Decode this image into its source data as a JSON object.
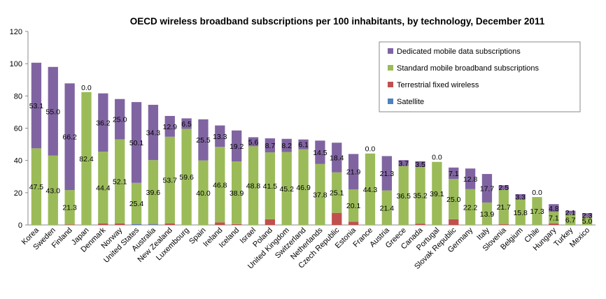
{
  "chart_data": {
    "type": "bar",
    "stacked": true,
    "title": "OECD wireless broadband subscriptions per 100 inhabitants, by technology, December 2011",
    "ylim": [
      0,
      120
    ],
    "yticks": [
      "0",
      "20",
      "40",
      "60",
      "80",
      "100",
      "120"
    ],
    "grid": false,
    "legend_position": "top-right",
    "categories": [
      "Korea",
      "Sweden",
      "Finland",
      "Japan",
      "Denmark",
      "Norway",
      "United States",
      "Australia",
      "New Zealand",
      "Luxembourg",
      "Spain",
      "Ireland",
      "Iceland",
      "Israel",
      "Poland",
      "United Kingdom",
      "Switzerland",
      "Netherlands",
      "Czech Republic",
      "Estonia",
      "France",
      "Austria",
      "Greece",
      "Canada",
      "Portugal",
      "Slovak Republic",
      "Germany",
      "Italy",
      "Slovenia",
      "Belgium",
      "Chile",
      "Hungary",
      "Turkey",
      "Mexico"
    ],
    "series": [
      {
        "name": "Satellite",
        "color": "#4f81bd",
        "values": [
          0,
          0,
          0,
          0,
          0,
          0,
          0.5,
          0.4,
          0,
          0,
          0,
          0,
          0,
          0,
          0,
          0,
          0,
          0,
          0,
          0,
          0,
          0,
          0,
          0,
          0,
          0,
          0,
          0,
          0,
          0,
          0,
          0,
          0,
          0
        ]
      },
      {
        "name": "Terrestrial fixed wireless",
        "color": "#c0504d",
        "values": [
          0,
          0,
          0.3,
          0,
          1.0,
          1.0,
          0.2,
          0.2,
          1.0,
          0,
          0,
          1.6,
          0.5,
          0,
          3.5,
          0,
          0,
          0,
          7.5,
          2.0,
          0,
          0,
          0,
          0.8,
          0,
          3.5,
          0,
          0,
          0.4,
          0,
          0,
          1.0,
          0,
          0
        ]
      },
      {
        "name": "Standard mobile broadband subscriptions",
        "color": "#9bbb59",
        "values": [
          47.5,
          43.0,
          21.3,
          82.4,
          44.4,
          52.1,
          25.4,
          39.6,
          53.7,
          59.6,
          40.0,
          46.8,
          38.9,
          48.8,
          41.5,
          45.2,
          46.9,
          37.8,
          25.1,
          20.1,
          44.3,
          21.4,
          36.5,
          35.2,
          39.1,
          25.0,
          22.2,
          13.9,
          21.7,
          15.8,
          17.3,
          7.1,
          6.7,
          5.0
        ]
      },
      {
        "name": "Dedicated mobile data subscriptions",
        "color": "#8064a2",
        "values": [
          53.1,
          55.0,
          66.2,
          0.0,
          36.2,
          25.0,
          50.1,
          34.3,
          12.9,
          6.5,
          25.5,
          13.3,
          19.2,
          5.6,
          8.7,
          8.2,
          6.1,
          14.5,
          18.4,
          21.9,
          0.0,
          21.3,
          3.7,
          3.5,
          0.0,
          7.1,
          12.8,
          17.7,
          2.5,
          3.3,
          0.0,
          4.8,
          2.1,
          2.3
        ]
      }
    ],
    "standard_labels": [
      "47.5",
      "43.0",
      "21.3",
      "82.4",
      "44.4",
      "52.1",
      "25.4",
      "39.6",
      "53.7",
      "59.6",
      "40.0",
      "46.8",
      "38.9",
      "48.8",
      "41.5",
      "45.2",
      "46.9",
      "37.8",
      "25.1",
      "20.1",
      "44.3",
      "21.4",
      "36.5",
      "35.2",
      "39.1",
      "25.0",
      "22.2",
      "13.9",
      "21.7",
      "15.8",
      "17.3",
      "7.1",
      "6.7",
      "5.0"
    ],
    "dedicated_labels": [
      "53.1",
      "55.0",
      "66.2",
      "0.0",
      "36.2",
      "25.0",
      "50.1",
      "34.3",
      "12.9",
      "6.5",
      "25.5",
      "13.3",
      "19.2",
      "5.6",
      "8.7",
      "8.2",
      "6.1",
      "14.5",
      "18.4",
      "21.9",
      "0.0",
      "21.3",
      "3.7",
      "3.5",
      "0.0",
      "7.1",
      "12.8",
      "17.7",
      "2.5",
      "3.3",
      "0.0",
      "4.8",
      "2.1",
      "2.3"
    ],
    "legend": [
      {
        "label": "Dedicated mobile data subscriptions",
        "color": "#8064a2"
      },
      {
        "label": "Standard mobile broadband subscriptions",
        "color": "#9bbb59"
      },
      {
        "label": "Terrestrial fixed wireless",
        "color": "#c0504d"
      },
      {
        "label": "Satellite",
        "color": "#4f81bd"
      }
    ]
  }
}
